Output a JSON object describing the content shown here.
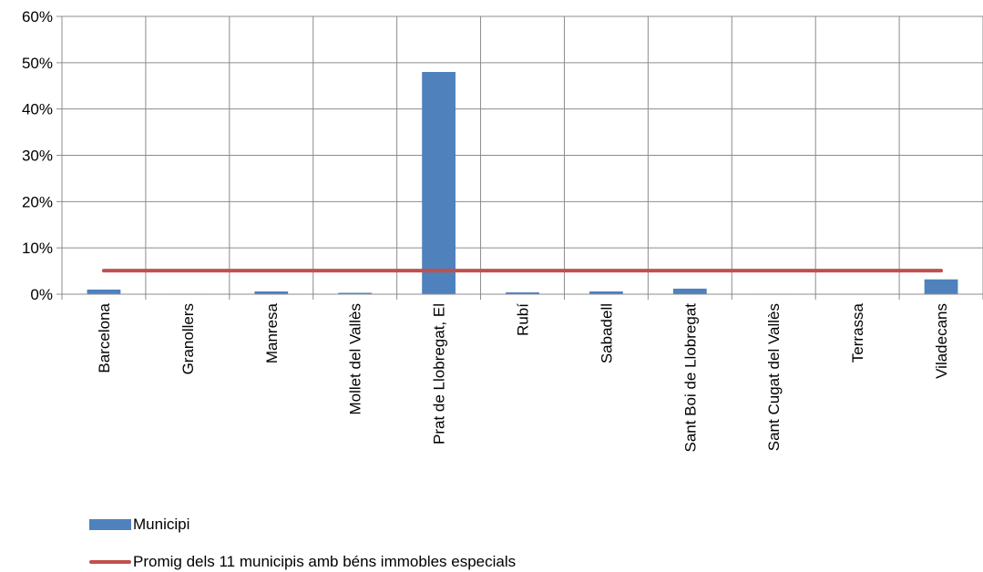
{
  "colors": {
    "bar": "#4f81bd",
    "line": "#c0504d",
    "grid": "#8c8c8c"
  },
  "chart_data": {
    "type": "bar",
    "title": "",
    "xlabel": "",
    "ylabel": "",
    "ylim": [
      0,
      60
    ],
    "y_tick_labels": [
      "0%",
      "10%",
      "20%",
      "30%",
      "40%",
      "50%",
      "60%"
    ],
    "grid": true,
    "legend_position": "bottom-left",
    "categories": [
      "Barcelona",
      "Granollers",
      "Manresa",
      "Mollet del Vallès",
      "Prat de Llobregat, El",
      "Rubí",
      "Sabadell",
      "Sant Boi de Llobregat",
      "Sant Cugat del Vallès",
      "Terrassa",
      "Viladecans"
    ],
    "series": [
      {
        "name": "Municipi",
        "type": "bar",
        "values": [
          1.0,
          0.1,
          0.6,
          0.3,
          48.0,
          0.4,
          0.6,
          1.2,
          0.1,
          0.1,
          3.2
        ]
      },
      {
        "name": "Promig dels 11 municipis amb béns immobles especials",
        "type": "line",
        "values": [
          5.1,
          5.1,
          5.1,
          5.1,
          5.1,
          5.1,
          5.1,
          5.1,
          5.1,
          5.1,
          5.1
        ]
      }
    ]
  }
}
